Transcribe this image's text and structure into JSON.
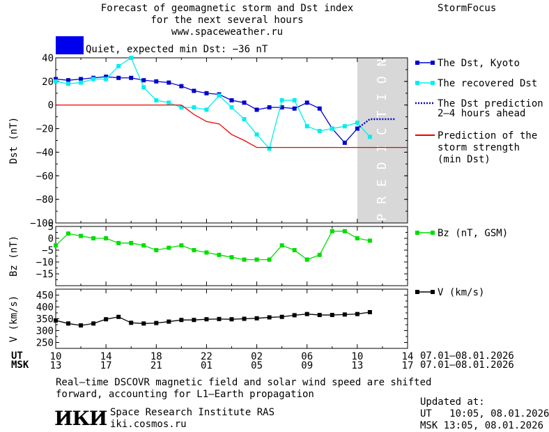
{
  "header": {
    "title_line1": "Forecast of geomagnetic storm and Dst index",
    "title_line2": "for the next several hours",
    "title_line3": "www.spaceweather.ru",
    "brand": "StormFocus"
  },
  "status": {
    "text": "Quiet, expected min Dst: −36 nT",
    "color": "#0000ee"
  },
  "legend": {
    "dst_kyoto": "The Dst, Kyoto",
    "dst_recovered": "The recovered Dst",
    "dst_prediction_1": "The Dst prediction",
    "dst_prediction_2": "2–4 hours ahead",
    "storm_1": "Prediction of the",
    "storm_2": "storm strength",
    "storm_3": "(min Dst)",
    "bz": "Bz (nT, GSM)",
    "v": "V (km/s)"
  },
  "footer": {
    "note_line1": "Real–time DSCOVR magnetic field and solar wind speed are shifted",
    "note_line2": "forward, accounting for L1–Earth propagation",
    "institute": "Space Research Institute RAS",
    "site": "iki.cosmos.ru",
    "logo": "ИКИ",
    "updated_label": "Updated at:",
    "updated_ut": "UT   10:05, 08.01.2026",
    "updated_msk": "MSK 13:05, 08.01.2026"
  },
  "chart_data": {
    "type": "line",
    "x_axis": {
      "ut_label": "UT",
      "msk_label": "MSK",
      "ut_ticks": [
        "10",
        "14",
        "18",
        "22",
        "02",
        "06",
        "10",
        "14"
      ],
      "msk_ticks": [
        "13",
        "17",
        "21",
        "01",
        "05",
        "09",
        "13",
        "17"
      ],
      "date_range_ut": "07.01–08.01.2026",
      "date_range_msk": "07.01–08.01.2026",
      "range_hours": [
        0,
        28
      ]
    },
    "prediction_band": {
      "label": "PREDICTION",
      "x_start": 24,
      "x_end": 28,
      "color": "#d8d8d8"
    },
    "panels": [
      {
        "name": "dst",
        "ylabel": "Dst (nT)",
        "ylim": [
          -100,
          40
        ],
        "yticks": [
          40,
          20,
          0,
          -20,
          -40,
          -60,
          -80,
          -100
        ],
        "series": [
          {
            "name": "The Dst, Kyoto",
            "color": "#0000cc",
            "marker": "square",
            "x": [
              0,
              1,
              2,
              3,
              4,
              5,
              6,
              7,
              8,
              9,
              10,
              11,
              12,
              13,
              14,
              15,
              16,
              17,
              18,
              19,
              20,
              21,
              22,
              23,
              24
            ],
            "y": [
              22,
              21,
              22,
              23,
              24,
              23,
              23,
              21,
              20,
              19,
              16,
              12,
              10,
              9,
              4,
              2,
              -4,
              -2,
              -2,
              -3,
              2,
              -3,
              -20,
              -32,
              -20
            ]
          },
          {
            "name": "The recovered Dst",
            "color": "#00eeee",
            "marker": "square",
            "x": [
              0,
              1,
              2,
              3,
              4,
              5,
              6,
              7,
              8,
              9,
              10,
              11,
              12,
              13,
              14,
              15,
              16,
              17,
              18,
              19,
              20,
              21,
              22,
              23,
              24,
              25
            ],
            "y": [
              20,
              18,
              19,
              22,
              22,
              33,
              40,
              15,
              4,
              2,
              -2,
              -2,
              -4,
              8,
              -2,
              -12,
              -25,
              -37,
              4,
              4,
              -18,
              -22,
              -20,
              -18,
              -15,
              -27
            ]
          },
          {
            "name": "The Dst prediction 2–4 hours ahead",
            "color": "#0000cc",
            "style": "dotted",
            "x": [
              24,
              25,
              26,
              27
            ],
            "y": [
              -20,
              -12,
              -12,
              -12
            ]
          },
          {
            "name": "Prediction of the storm strength (min Dst)",
            "color": "#ee0000",
            "x": [
              0,
              10,
              11,
              12,
              13,
              14,
              15,
              16,
              28
            ],
            "y": [
              0,
              0,
              -8,
              -14,
              -16,
              -25,
              -30,
              -36,
              -36
            ]
          }
        ]
      },
      {
        "name": "bz",
        "ylabel": "Bz (nT)",
        "ylim": [
          -20,
          5
        ],
        "yticks": [
          5,
          0,
          -5,
          -10,
          -15
        ],
        "series": [
          {
            "name": "Bz (nT, GSM)",
            "color": "#00dd00",
            "marker": "square",
            "x": [
              0,
              1,
              2,
              3,
              4,
              5,
              6,
              7,
              8,
              9,
              10,
              11,
              12,
              13,
              14,
              15,
              16,
              17,
              18,
              19,
              20,
              21,
              22,
              23,
              24,
              25
            ],
            "y": [
              -3,
              2,
              1,
              0,
              0,
              -2,
              -2,
              -3,
              -5,
              -4,
              -3,
              -5,
              -6,
              -7,
              -8,
              -9,
              -9,
              -9,
              -3,
              -5,
              -9,
              -7,
              3,
              3,
              0,
              -1
            ]
          }
        ]
      },
      {
        "name": "v",
        "ylabel": "V (km/s)",
        "ylim": [
          225,
          475
        ],
        "yticks": [
          450,
          400,
          350,
          300,
          250
        ],
        "series": [
          {
            "name": "V (km/s)",
            "color": "#000000",
            "marker": "square",
            "x": [
              0,
              1,
              2,
              3,
              4,
              5,
              6,
              7,
              8,
              9,
              10,
              11,
              12,
              13,
              14,
              15,
              16,
              17,
              18,
              19,
              20,
              21,
              22,
              23,
              24,
              25
            ],
            "y": [
              343,
              330,
              322,
              330,
              348,
              358,
              333,
              330,
              332,
              338,
              345,
              345,
              348,
              349,
              348,
              350,
              352,
              356,
              358,
              365,
              370,
              366,
              366,
              368,
              370,
              378
            ]
          }
        ]
      }
    ]
  }
}
